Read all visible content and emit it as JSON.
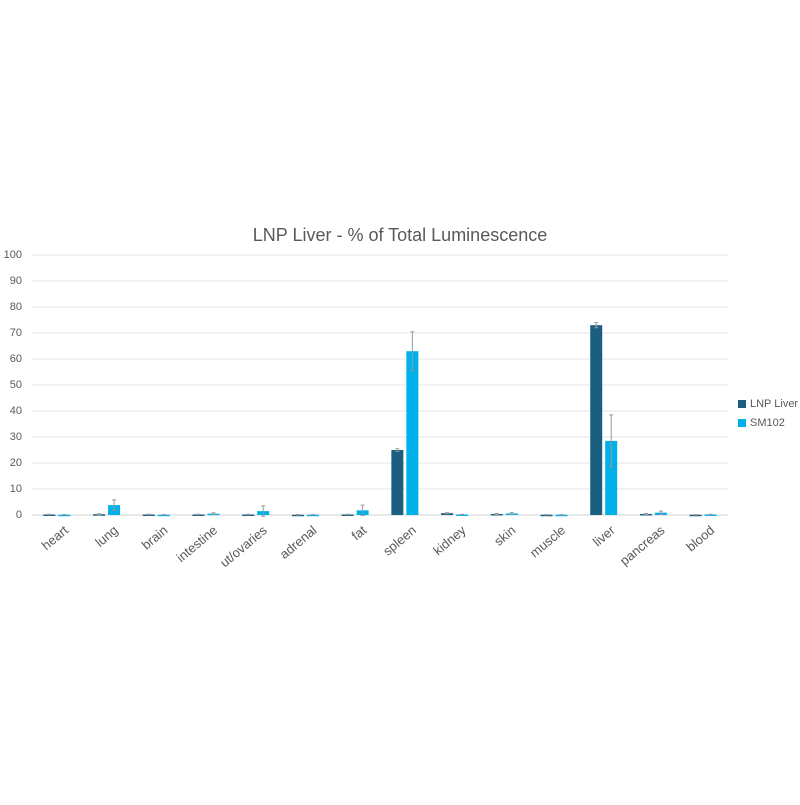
{
  "chart_data": {
    "type": "bar",
    "title": "LNP Liver - % of Total Luminescence",
    "categories": [
      "heart",
      "lung",
      "brain",
      "intestine",
      "ut/ovaries",
      "adrenal",
      "fat",
      "spleen",
      "kidney",
      "skin",
      "muscle",
      "liver",
      "pancreas",
      "blood"
    ],
    "series": [
      {
        "name": "LNP Liver",
        "color": "#1b5e7f",
        "values": [
          0.2,
          0.3,
          0.2,
          0.2,
          0.2,
          0.1,
          0.2,
          25,
          0.7,
          0.4,
          0.1,
          73,
          0.4,
          0.1
        ],
        "errors": [
          0.1,
          0.2,
          0.1,
          0.1,
          0.1,
          0.1,
          0.1,
          0.5,
          0.2,
          0.2,
          0.1,
          1,
          0.2,
          0.1
        ]
      },
      {
        "name": "SM102",
        "color": "#00b0e8",
        "values": [
          0.1,
          3.8,
          0.1,
          0.5,
          1.5,
          0.1,
          1.8,
          63,
          0.2,
          0.6,
          0.1,
          28.5,
          0.9,
          0.2
        ],
        "errors": [
          0.1,
          2,
          0.1,
          0.3,
          2,
          0.1,
          2,
          7.5,
          0.1,
          0.3,
          0.1,
          10,
          0.6,
          0.1
        ]
      }
    ],
    "ylim": [
      0,
      100
    ],
    "yticks": [
      0,
      10,
      20,
      30,
      40,
      50,
      60,
      70,
      80,
      90,
      100
    ],
    "grid": true,
    "legend": "right"
  }
}
